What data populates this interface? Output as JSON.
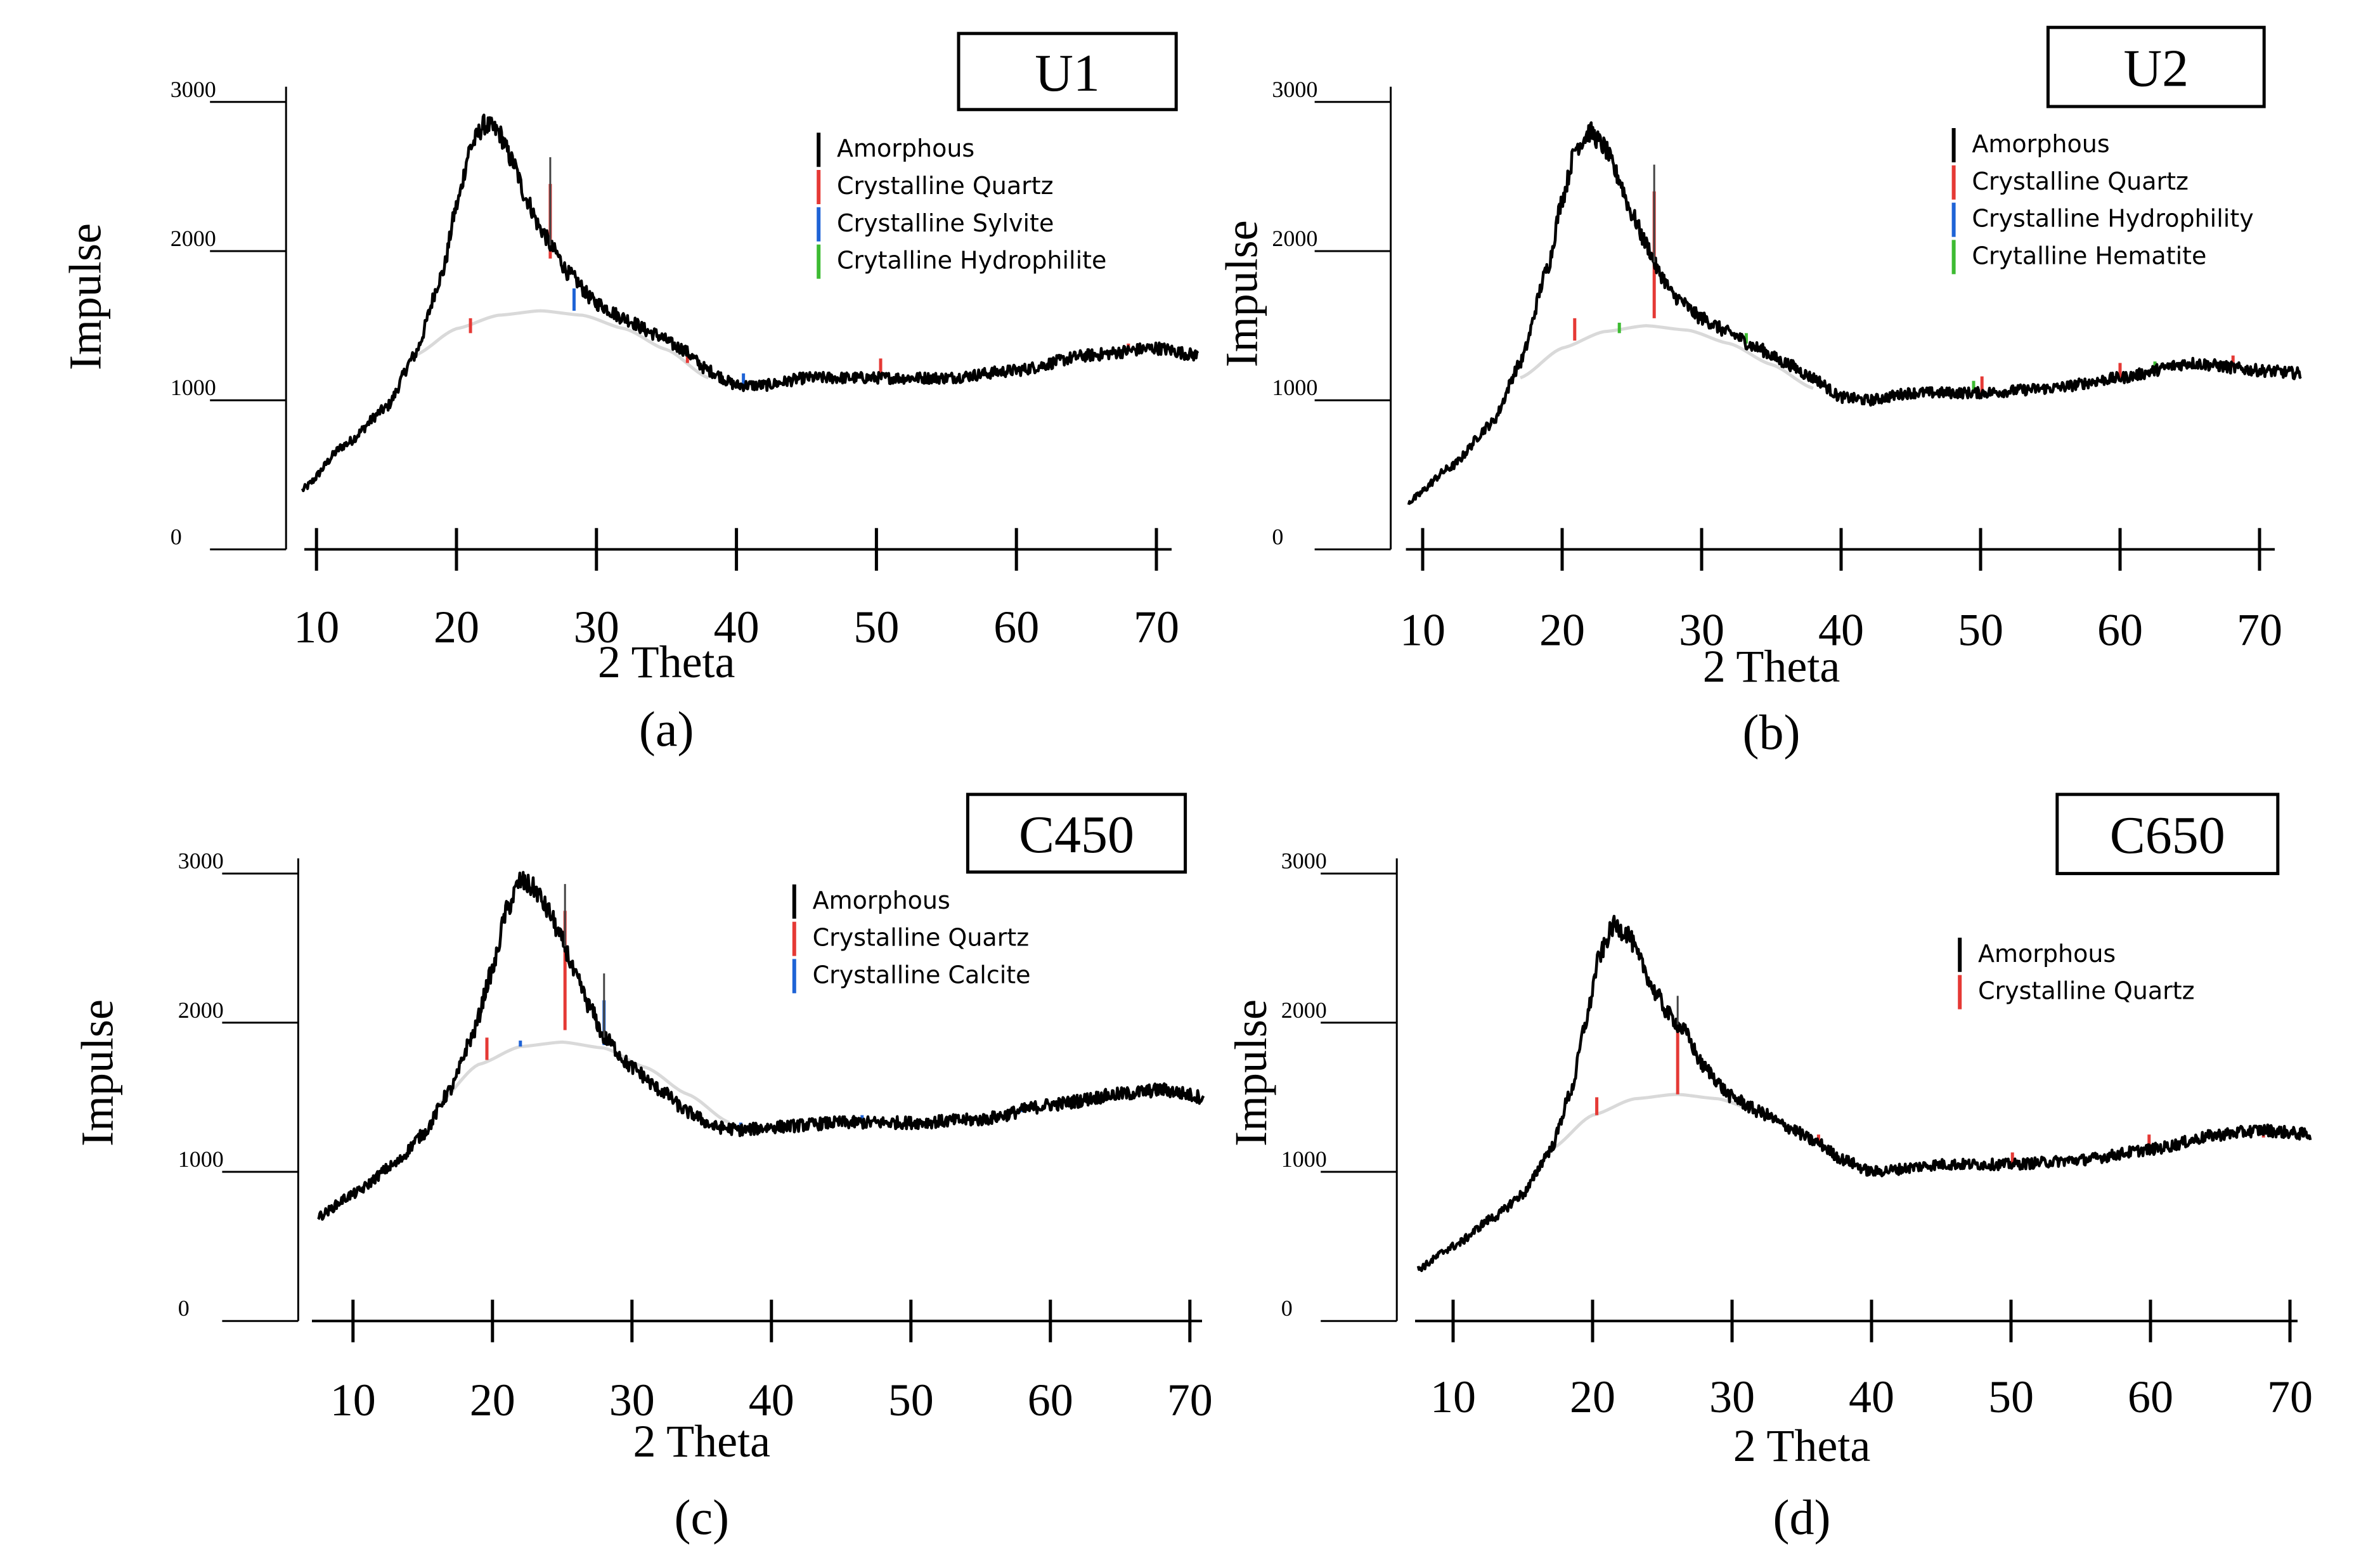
{
  "figure": {
    "panels": [
      {
        "id": "a",
        "caption": "(a)",
        "sample_label": "U1",
        "ylabel": "Impulse",
        "xlabel": "2 Theta"
      },
      {
        "id": "b",
        "caption": "(b)",
        "sample_label": "U2",
        "ylabel": "Impulse",
        "xlabel": "2 Theta"
      },
      {
        "id": "c",
        "caption": "(c)",
        "sample_label": "C450",
        "ylabel": "Impulse",
        "xlabel": "2 Theta"
      },
      {
        "id": "d",
        "caption": "(d)",
        "sample_label": "C650",
        "ylabel": "Impulse",
        "xlabel": "2 Theta"
      }
    ]
  },
  "colors": {
    "amorphous": "#000000",
    "quartz": "#e53935",
    "third_phase": "#1e63d6",
    "fourth_phase": "#3dbb32",
    "background_curve": "#d9d9d9"
  },
  "chart_data": [
    {
      "type": "line",
      "title": "U1",
      "xlabel": "2 Theta",
      "ylabel": "Impulse",
      "xlim": [
        9,
        73
      ],
      "ylim": [
        0,
        3000
      ],
      "x_ticks": [
        "10",
        "20",
        "30",
        "40",
        "50",
        "60",
        "70"
      ],
      "y_ticks": [
        "0",
        "1000",
        "2000",
        "3000"
      ],
      "legend": [
        {
          "name": "Amorphous",
          "color": "#000000"
        },
        {
          "name": "Crystalline Quartz",
          "color": "#e53935"
        },
        {
          "name": "Crystalline Sylvite",
          "color": "#1e63d6"
        },
        {
          "name": "Crytalline Hydrophilite",
          "color": "#3dbb32"
        }
      ],
      "series": [
        {
          "name": "Amorphous",
          "x": [
            9,
            12,
            15,
            17,
            19,
            20,
            21,
            22,
            23,
            24,
            25,
            26,
            27,
            28,
            30,
            32,
            34,
            36,
            38,
            40,
            42,
            45,
            50,
            55,
            60,
            65,
            70,
            73
          ],
          "y": [
            400,
            700,
            950,
            1300,
            1850,
            2300,
            2700,
            2850,
            2800,
            2600,
            2350,
            2150,
            2000,
            1850,
            1650,
            1550,
            1450,
            1350,
            1200,
            1100,
            1100,
            1150,
            1150,
            1150,
            1200,
            1300,
            1350,
            1300
          ]
        },
        {
          "name": "Background",
          "x": [
            17,
            20,
            23,
            26,
            29,
            32,
            35,
            38
          ],
          "y": [
            1300,
            1480,
            1570,
            1600,
            1570,
            1480,
            1340,
            1150
          ]
        }
      ],
      "peaks": [
        {
          "phase": "Crystalline Quartz",
          "x": 21.0,
          "y_from": 1450,
          "y_to": 1550
        },
        {
          "phase": "Crystalline Quartz",
          "x": 26.7,
          "y_from": 1950,
          "y_to": 2450
        },
        {
          "phase": "Crystalline Sylvite",
          "x": 28.4,
          "y_from": 1600,
          "y_to": 1750
        },
        {
          "phase": "Crystalline Sylvite",
          "x": 40.5,
          "y_from": 1100,
          "y_to": 1180
        },
        {
          "phase": "Crystalline Quartz",
          "x": 36.5,
          "y_from": 1250,
          "y_to": 1330
        },
        {
          "phase": "Crystalline Quartz",
          "x": 50.3,
          "y_from": 1150,
          "y_to": 1280
        },
        {
          "phase": "Crystalline Quartz",
          "x": 68.0,
          "y_from": 1330,
          "y_to": 1380
        }
      ]
    },
    {
      "type": "line",
      "title": "U2",
      "xlabel": "2 Theta",
      "ylabel": "Impulse",
      "xlim": [
        9,
        73
      ],
      "ylim": [
        0,
        3000
      ],
      "x_ticks": [
        "10",
        "20",
        "30",
        "40",
        "50",
        "60",
        "70"
      ],
      "y_ticks": [
        "0",
        "1000",
        "2000",
        "3000"
      ],
      "legend": [
        {
          "name": "Amorphous",
          "color": "#000000"
        },
        {
          "name": "Crystalline Quartz",
          "color": "#e53935"
        },
        {
          "name": "Crystalline Hydrophility",
          "color": "#1e63d6"
        },
        {
          "name": "Crytalline Hematite",
          "color": "#3dbb32"
        }
      ],
      "series": [
        {
          "name": "Amorphous",
          "x": [
            9,
            12,
            15,
            17,
            19,
            20,
            21,
            22,
            23,
            24,
            25,
            26,
            27,
            28,
            30,
            32,
            34,
            36,
            38,
            40,
            42,
            45,
            50,
            55,
            60,
            65,
            70,
            73
          ],
          "y": [
            320,
            550,
            850,
            1250,
            1900,
            2350,
            2700,
            2800,
            2700,
            2500,
            2250,
            2050,
            1850,
            1700,
            1550,
            1450,
            1350,
            1250,
            1150,
            1020,
            1000,
            1050,
            1050,
            1080,
            1150,
            1250,
            1200,
            1180
          ]
        },
        {
          "name": "Background",
          "x": [
            17,
            20,
            23,
            26,
            29,
            32,
            35,
            38
          ],
          "y": [
            1150,
            1350,
            1460,
            1500,
            1470,
            1380,
            1240,
            1080
          ]
        }
      ],
      "peaks": [
        {
          "phase": "Crystalline Quartz",
          "x": 20.9,
          "y_from": 1400,
          "y_to": 1550
        },
        {
          "phase": "Crystalline Quartz",
          "x": 26.6,
          "y_from": 1550,
          "y_to": 2400
        },
        {
          "phase": "Crytalline Hematite",
          "x": 24.1,
          "y_from": 1450,
          "y_to": 1520
        },
        {
          "phase": "Crytalline Hematite",
          "x": 33.2,
          "y_from": 1380,
          "y_to": 1450
        },
        {
          "phase": "Crytalline Hematite",
          "x": 49.5,
          "y_from": 1050,
          "y_to": 1130
        },
        {
          "phase": "Crystalline Quartz",
          "x": 50.1,
          "y_from": 1050,
          "y_to": 1160
        },
        {
          "phase": "Crystalline Quartz",
          "x": 60.0,
          "y_from": 1150,
          "y_to": 1250
        },
        {
          "phase": "Crytalline Hematite",
          "x": 62.5,
          "y_from": 1180,
          "y_to": 1260
        },
        {
          "phase": "Crystalline Quartz",
          "x": 68.1,
          "y_from": 1220,
          "y_to": 1300
        }
      ]
    },
    {
      "type": "line",
      "title": "C450",
      "xlabel": "2 Theta",
      "ylabel": "Impulse",
      "xlim": [
        7.5,
        71
      ],
      "ylim": [
        0,
        3000
      ],
      "x_ticks": [
        "10",
        "20",
        "30",
        "40",
        "50",
        "60",
        "70"
      ],
      "y_ticks": [
        "0",
        "1000",
        "2000",
        "3000"
      ],
      "legend": [
        {
          "name": "Amorphous",
          "color": "#000000"
        },
        {
          "name": "Crystalline Quartz",
          "color": "#e53935"
        },
        {
          "name": "Crystalline Calcite",
          "color": "#1e63d6"
        }
      ],
      "series": [
        {
          "name": "Amorphous",
          "x": [
            7.5,
            10,
            13,
            15,
            17,
            18.5,
            20,
            21,
            22,
            23,
            24,
            25,
            26,
            27,
            28,
            30,
            32,
            34,
            36,
            38,
            40,
            45,
            50,
            55,
            60,
            65,
            68,
            71
          ],
          "y": [
            700,
            850,
            1050,
            1250,
            1550,
            1900,
            2350,
            2750,
            2950,
            2900,
            2750,
            2550,
            2300,
            2100,
            1900,
            1700,
            1550,
            1400,
            1300,
            1280,
            1300,
            1330,
            1330,
            1350,
            1450,
            1520,
            1550,
            1500
          ]
        },
        {
          "name": "Background",
          "x": [
            16,
            19,
            22,
            25,
            28,
            31,
            34,
            37
          ],
          "y": [
            1450,
            1720,
            1840,
            1870,
            1830,
            1700,
            1520,
            1330
          ]
        }
      ],
      "peaks": [
        {
          "phase": "Crystalline Quartz",
          "x": 19.6,
          "y_from": 1750,
          "y_to": 1900
        },
        {
          "phase": "Crystalline Quartz",
          "x": 25.2,
          "y_from": 1950,
          "y_to": 2750
        },
        {
          "phase": "Crystalline Calcite",
          "x": 22.0,
          "y_from": 1840,
          "y_to": 1880
        },
        {
          "phase": "Crystalline Calcite",
          "x": 28.0,
          "y_from": 1850,
          "y_to": 2150
        },
        {
          "phase": "Crystalline Calcite",
          "x": 37.8,
          "y_from": 1280,
          "y_to": 1330
        },
        {
          "phase": "Crystalline Calcite",
          "x": 46.5,
          "y_from": 1330,
          "y_to": 1380
        },
        {
          "phase": "Crystalline Calcite",
          "x": 58.0,
          "y_from": 1400,
          "y_to": 1440
        }
      ]
    },
    {
      "type": "line",
      "title": "C650",
      "xlabel": "2 Theta",
      "ylabel": "Impulse",
      "xlim": [
        7.5,
        71.5
      ],
      "ylim": [
        0,
        3000
      ],
      "x_ticks": [
        "10",
        "20",
        "30",
        "40",
        "50",
        "60",
        "70"
      ],
      "y_ticks": [
        "0",
        "1000",
        "2000",
        "3000"
      ],
      "legend": [
        {
          "name": "Amorphous",
          "color": "#000000"
        },
        {
          "name": "Crystalline Quartz",
          "color": "#e53935"
        }
      ],
      "series": [
        {
          "name": "Amorphous",
          "x": [
            7.5,
            10,
            13,
            15,
            17,
            18.5,
            19.5,
            20.5,
            21.5,
            22.5,
            23.5,
            24.5,
            25.5,
            26.5,
            28,
            30,
            32,
            34,
            36,
            38,
            40,
            45,
            50,
            55,
            60,
            65,
            68,
            71.5
          ],
          "y": [
            350,
            500,
            700,
            850,
            1150,
            1550,
            2000,
            2450,
            2650,
            2600,
            2400,
            2200,
            2050,
            1950,
            1700,
            1500,
            1400,
            1300,
            1200,
            1080,
            1000,
            1050,
            1050,
            1080,
            1150,
            1250,
            1280,
            1250
          ]
        },
        {
          "name": "Background",
          "x": [
            17,
            20,
            23,
            26,
            29,
            32,
            35,
            38
          ],
          "y": [
            1150,
            1380,
            1490,
            1520,
            1490,
            1400,
            1250,
            1080
          ]
        }
      ],
      "peaks": [
        {
          "phase": "Crystalline Quartz",
          "x": 20.3,
          "y_from": 1380,
          "y_to": 1500
        },
        {
          "phase": "Crystalline Quartz",
          "x": 26.1,
          "y_from": 1520,
          "y_to": 2000
        },
        {
          "phase": "Crystalline Quartz",
          "x": 36.2,
          "y_from": 1200,
          "y_to": 1250
        },
        {
          "phase": "Crystalline Quartz",
          "x": 50.1,
          "y_from": 1050,
          "y_to": 1130
        },
        {
          "phase": "Crystalline Quartz",
          "x": 59.9,
          "y_from": 1150,
          "y_to": 1250
        },
        {
          "phase": "Crystalline Quartz",
          "x": 68.1,
          "y_from": 1230,
          "y_to": 1300
        }
      ]
    }
  ]
}
